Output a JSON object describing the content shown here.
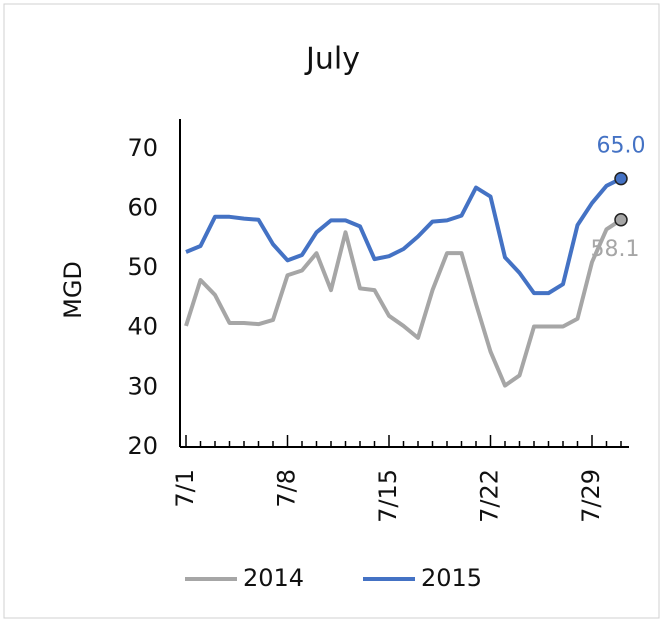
{
  "chart_data": {
    "type": "line",
    "title": "July",
    "y_label": "MGD",
    "categories": [
      "7/1",
      null,
      null,
      null,
      null,
      null,
      null,
      "7/8",
      null,
      null,
      null,
      null,
      null,
      null,
      "7/15",
      null,
      null,
      null,
      null,
      null,
      null,
      "7/22",
      null,
      null,
      null,
      null,
      null,
      null,
      "7/29",
      null,
      null
    ],
    "series": [
      {
        "name": "2014",
        "color": "#a6a6a6",
        "values": [
          40.3,
          48,
          45.5,
          40.8,
          40.8,
          40.6,
          41.3,
          48.8,
          49.6,
          52.5,
          46.3,
          56,
          46.6,
          46.3,
          42,
          40.3,
          38.3,
          46.3,
          52.5,
          52.5,
          44,
          36,
          30.3,
          32,
          40.2,
          40.2,
          40.2,
          41.5,
          51,
          56.5,
          58.1
        ],
        "value_labels": [
          null,
          null,
          null,
          null,
          null,
          null,
          null,
          null,
          null,
          null,
          null,
          null,
          null,
          null,
          null,
          null,
          null,
          null,
          null,
          null,
          null,
          null,
          null,
          null,
          null,
          null,
          null,
          null,
          null,
          null,
          "58.1"
        ]
      },
      {
        "name": "2015",
        "color": "#4472c4",
        "values": [
          52.7,
          53.7,
          58.6,
          58.6,
          58.3,
          58.1,
          54,
          51.3,
          52.2,
          56,
          58,
          58,
          57,
          51.5,
          52,
          53.2,
          55.3,
          57.8,
          58,
          58.8,
          63.5,
          62,
          51.8,
          49.2,
          45.8,
          45.8,
          47.3,
          57.2,
          60.9,
          63.8,
          65
        ],
        "value_labels": [
          null,
          null,
          null,
          null,
          null,
          null,
          null,
          null,
          null,
          null,
          null,
          null,
          null,
          null,
          null,
          null,
          null,
          null,
          null,
          null,
          null,
          null,
          null,
          null,
          null,
          null,
          null,
          null,
          null,
          null,
          "65.0"
        ]
      }
    ],
    "ylim": [
      20,
      75
    ],
    "yticks": [
      20,
      30,
      40,
      50,
      60,
      70
    ],
    "grid": false,
    "legend": "bottom"
  }
}
